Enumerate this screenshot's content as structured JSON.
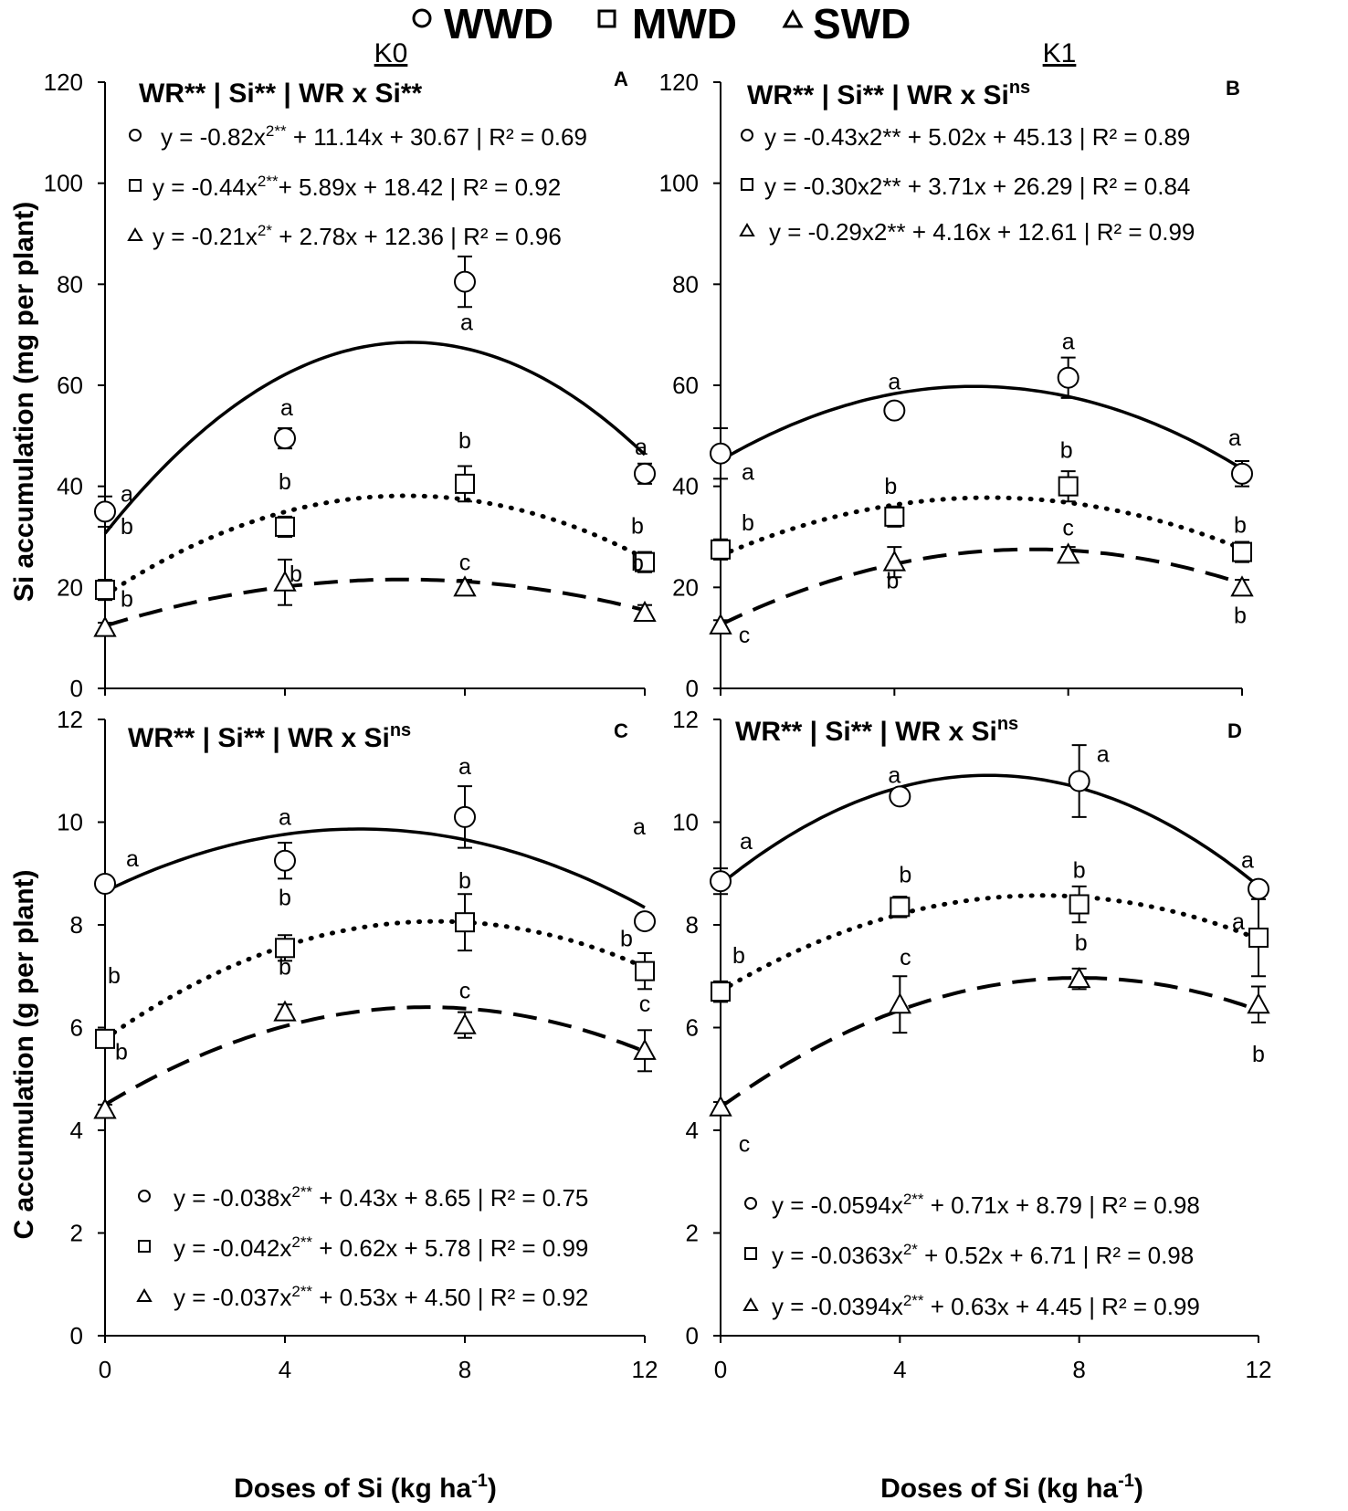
{
  "legend": {
    "items": [
      {
        "marker": "circle",
        "label": "WWD"
      },
      {
        "marker": "square",
        "label": "MWD"
      },
      {
        "marker": "triangle",
        "label": "SWD"
      }
    ]
  },
  "column_labels": {
    "k0": "K0",
    "k1": "K1"
  },
  "axis_labels": {
    "x_main": "Doses of Si (kg ha",
    "x_sup": "-1",
    "x_close": ")",
    "y_top": "Si accumulation (mg per plant)",
    "y_bottom": "C accumulation (g per plant)"
  },
  "chart_data": [
    {
      "id": "A",
      "panel_label": "A",
      "type": "line",
      "column": "K0",
      "title": {
        "main": "WR** | Si** | WR x Si**",
        "sup": ""
      },
      "ylabel": "Si accumulation (mg per plant)",
      "xlabel": "Doses of Si (kg ha-1)",
      "xlim": [
        0,
        12
      ],
      "ylim": [
        0,
        120
      ],
      "x_ticks": [
        "0",
        "4",
        "8",
        "12"
      ],
      "y_ticks": [
        "0",
        "20",
        "40",
        "60",
        "80",
        "100",
        "120"
      ],
      "x": [
        0,
        4,
        8,
        12
      ],
      "series": [
        {
          "name": "WWD",
          "marker": "circle",
          "style": "solid",
          "values": [
            35,
            49.5,
            80.5,
            42.5
          ],
          "errors": [
            3,
            2,
            5,
            2
          ],
          "letters": [
            "a",
            "a",
            "a",
            "a"
          ],
          "fit": [
            -0.82,
            11.14,
            30.67
          ],
          "equation": [
            "y = -0.82x",
            "2**",
            " + 11.14x + 30.67 | R² = 0.69"
          ]
        },
        {
          "name": "MWD",
          "marker": "square",
          "style": "dotted",
          "values": [
            19.5,
            32,
            40.5,
            25
          ],
          "errors": [
            2,
            2,
            3.5,
            2
          ],
          "letters": [
            "b",
            "b",
            "b",
            "b"
          ],
          "fit": [
            -0.44,
            5.89,
            18.42
          ],
          "equation": [
            "y = -0.44x",
            "2**",
            "+ 5.89x + 18.42 | R² = 0.92"
          ]
        },
        {
          "name": "SWD",
          "marker": "triangle",
          "style": "dashed",
          "values": [
            12,
            21,
            20,
            15
          ],
          "errors": [
            1,
            4.5,
            1.5,
            1.5
          ],
          "letters": [
            "b",
            "b",
            "c",
            "b"
          ],
          "fit": [
            -0.21,
            2.78,
            12.36
          ],
          "equation": [
            "y = -0.21x",
            "2*",
            " + 2.78x + 12.36 | R² = 0.96"
          ]
        }
      ]
    },
    {
      "id": "B",
      "panel_label": "B",
      "type": "line",
      "column": "K1",
      "title": {
        "main": "WR** | Si** | WR x Si",
        "sup": "ns"
      },
      "ylabel": "Si accumulation (mg per plant)",
      "xlabel": "Doses of Si (kg ha-1)",
      "xlim": [
        0,
        12
      ],
      "ylim": [
        0,
        120
      ],
      "x_ticks": [
        "0",
        "4",
        "8",
        "12"
      ],
      "y_ticks": [
        "0",
        "20",
        "40",
        "60",
        "80",
        "100",
        "120"
      ],
      "x": [
        0,
        4,
        8,
        12
      ],
      "series": [
        {
          "name": "WWD",
          "marker": "circle",
          "style": "solid",
          "values": [
            46.5,
            55,
            61.5,
            42.5
          ],
          "errors": [
            5,
            1.5,
            4,
            2.5
          ],
          "letters": [
            "a",
            "a",
            "a",
            "a"
          ],
          "fit": [
            -0.43,
            5.02,
            45.13
          ],
          "equation": [
            "y = -0.43x2** + 5.02x + 45.13 | R² = 0.89",
            "",
            ""
          ]
        },
        {
          "name": "MWD",
          "marker": "square",
          "style": "dotted",
          "values": [
            27.5,
            34,
            40,
            27
          ],
          "errors": [
            2,
            2,
            3,
            2
          ],
          "letters": [
            "b",
            "b",
            "b",
            "b"
          ],
          "fit": [
            -0.3,
            3.71,
            26.29
          ],
          "equation": [
            "y = -0.30x2** + 3.71x + 26.29 | R² = 0.84",
            "",
            ""
          ]
        },
        {
          "name": "SWD",
          "marker": "triangle",
          "style": "dashed",
          "values": [
            12.5,
            25,
            26.5,
            20
          ],
          "errors": [
            1,
            3,
            1.5,
            1.5
          ],
          "letters": [
            "c",
            "b",
            "c",
            "b"
          ],
          "fit": [
            -0.29,
            4.16,
            12.61
          ],
          "equation": [
            "y = -0.29x2** + 4.16x + 12.61 | R² = 0.99",
            "",
            ""
          ]
        }
      ]
    },
    {
      "id": "C",
      "panel_label": "C",
      "type": "line",
      "column": "K0",
      "title": {
        "main": "WR** | Si** | WR x Si",
        "sup": "ns"
      },
      "ylabel": "C accumulation (g per plant)",
      "xlabel": "Doses of Si (kg ha-1)",
      "xlim": [
        0,
        12
      ],
      "ylim": [
        0,
        12
      ],
      "x_ticks": [
        "0",
        "4",
        "8",
        "12"
      ],
      "y_ticks": [
        "0",
        "2",
        "4",
        "6",
        "8",
        "10",
        "12"
      ],
      "x": [
        0,
        4,
        8,
        12
      ],
      "series": [
        {
          "name": "WWD",
          "marker": "circle",
          "style": "solid",
          "values": [
            8.8,
            9.25,
            10.1,
            8.07
          ],
          "errors": [
            0.1,
            0.35,
            0.6,
            0.15
          ],
          "letters": [
            "a",
            "a",
            "a",
            "a"
          ],
          "fit": [
            -0.038,
            0.43,
            8.65
          ],
          "equation": [
            "y = -0.038x",
            "2**",
            " + 0.43x + 8.65 | R² = 0.75"
          ]
        },
        {
          "name": "MWD",
          "marker": "square",
          "style": "dotted",
          "values": [
            5.78,
            7.55,
            8.05,
            7.1
          ],
          "errors": [
            0.1,
            0.25,
            0.55,
            0.35
          ],
          "letters": [
            "b",
            "b",
            "b",
            "b"
          ],
          "fit": [
            -0.042,
            0.62,
            5.78
          ],
          "equation": [
            "y = -0.042x",
            "2**",
            " + 0.62x + 5.78 | R² = 0.99"
          ]
        },
        {
          "name": "SWD",
          "marker": "triangle",
          "style": "dashed",
          "values": [
            4.4,
            6.3,
            6.05,
            5.55
          ],
          "errors": [
            0.1,
            0.15,
            0.25,
            0.4
          ],
          "letters": [
            "b",
            "b",
            "c",
            "c"
          ],
          "fit": [
            -0.037,
            0.53,
            4.5
          ],
          "equation": [
            "y = -0.037x",
            "2**",
            " + 0.53x + 4.50 | R² = 0.92"
          ]
        }
      ]
    },
    {
      "id": "D",
      "panel_label": "D",
      "type": "line",
      "column": "K1",
      "title": {
        "main": "WR** | Si** | WR x Si",
        "sup": "ns"
      },
      "ylabel": "C accumulation (g per plant)",
      "xlabel": "Doses of Si (kg ha-1)",
      "xlim": [
        0,
        12
      ],
      "ylim": [
        0,
        12
      ],
      "x_ticks": [
        "0",
        "4",
        "8",
        "12"
      ],
      "y_ticks": [
        "0",
        "2",
        "4",
        "6",
        "8",
        "10",
        "12"
      ],
      "x": [
        0,
        4,
        8,
        12
      ],
      "series": [
        {
          "name": "WWD",
          "marker": "circle",
          "style": "solid",
          "values": [
            8.85,
            10.5,
            10.8,
            8.7
          ],
          "errors": [
            0.25,
            0.1,
            0.7,
            0.1
          ],
          "letters": [
            "a",
            "a",
            "a",
            "a"
          ],
          "fit": [
            -0.0594,
            0.71,
            8.79
          ],
          "equation": [
            "y = -0.0594x",
            "2**",
            " + 0.71x + 8.79 | R² = 0.98"
          ]
        },
        {
          "name": "MWD",
          "marker": "square",
          "style": "dotted",
          "values": [
            6.7,
            8.35,
            8.4,
            7.75
          ],
          "errors": [
            0.2,
            0.2,
            0.35,
            0.75
          ],
          "letters": [
            "b",
            "b",
            "b",
            "a"
          ],
          "fit": [
            -0.0363,
            0.52,
            6.71
          ],
          "equation": [
            "y = -0.0363x",
            "2*",
            " + 0.52x + 6.71 | R² = 0.98"
          ]
        },
        {
          "name": "SWD",
          "marker": "triangle",
          "style": "dashed",
          "values": [
            4.45,
            6.45,
            6.95,
            6.45
          ],
          "errors": [
            0.1,
            0.55,
            0.2,
            0.35
          ],
          "letters": [
            "c",
            "c",
            "b",
            "b"
          ],
          "fit": [
            -0.0394,
            0.63,
            4.45
          ],
          "equation": [
            "y = -0.0394x",
            "2**",
            " + 0.63x + 4.45 | R² = 0.99"
          ]
        }
      ]
    }
  ]
}
